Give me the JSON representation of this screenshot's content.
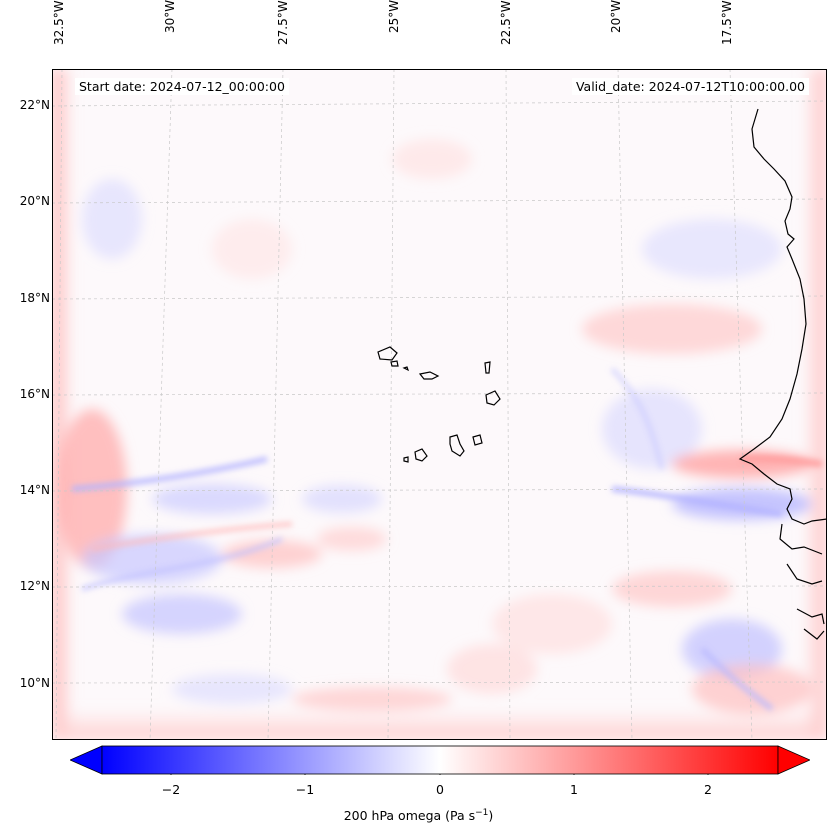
{
  "header": {
    "start_date": "Start date: 2024-07-12_00:00:00",
    "valid_date": "Valid_date: 2024-07-12T10:00:00.00"
  },
  "map": {
    "lon_labels": [
      "32.5°W",
      "30°W",
      "27.5°W",
      "25°W",
      "22.5°W",
      "20°W",
      "17.5°W"
    ],
    "lat_labels": [
      "22°N",
      "20°N",
      "18°N",
      "16°N",
      "14°N",
      "12°N",
      "10°N"
    ],
    "colormap": "bwr",
    "colors": {
      "negative": "#0000ff",
      "neutral": "#ffffff",
      "positive": "#ff0000",
      "coastline": "#000000",
      "gridline": "#c8c8c8"
    }
  },
  "colorbar": {
    "ticks": [
      "−2",
      "−1",
      "0",
      "1",
      "2"
    ],
    "range": [
      -2.7,
      2.7
    ],
    "title": "200 hPa omega (Pa s",
    "title_sup": "−1",
    "title_end": ")"
  }
}
